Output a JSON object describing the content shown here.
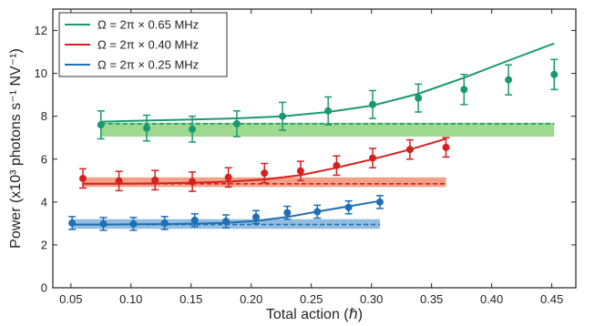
{
  "chart_data": {
    "type": "line",
    "xlabel": "Total action (ℏ)",
    "ylabel": "Power (x10³ photons s⁻¹ NV⁻¹)",
    "xlim": [
      0.035,
      0.47
    ],
    "ylim": [
      0,
      13
    ],
    "xticks": [
      0.05,
      0.1,
      0.15,
      0.2,
      0.25,
      0.3,
      0.35,
      0.4,
      0.45
    ],
    "yticks": [
      0,
      2,
      4,
      6,
      8,
      10,
      12
    ],
    "xtick_labels": [
      "0.05",
      "0.10",
      "0.15",
      "0.20",
      "0.25",
      "0.30",
      "0.35",
      "0.40",
      "0.45"
    ],
    "ytick_labels": [
      "0",
      "2",
      "4",
      "6",
      "8",
      "10",
      "12"
    ],
    "grid": false,
    "legend_position": "top-left",
    "series": [
      {
        "name": "Ω = 2π × 0.65 MHz",
        "color": "#1a9970",
        "band_color": "#7dcc6a",
        "points": {
          "x": [
            0.075,
            0.113,
            0.151,
            0.188,
            0.226,
            0.264,
            0.301,
            0.339,
            0.377,
            0.414,
            0.452
          ],
          "y": [
            7.6,
            7.45,
            7.4,
            7.65,
            8.0,
            8.25,
            8.55,
            8.85,
            9.25,
            9.7,
            9.95
          ],
          "err": [
            0.65,
            0.6,
            0.6,
            0.6,
            0.65,
            0.65,
            0.65,
            0.65,
            0.7,
            0.7,
            0.7
          ]
        },
        "fit": {
          "x": [
            0.075,
            0.113,
            0.151,
            0.188,
            0.226,
            0.264,
            0.301,
            0.339,
            0.377,
            0.414,
            0.452
          ],
          "y": [
            7.75,
            7.8,
            7.85,
            7.9,
            8.0,
            8.2,
            8.5,
            9.05,
            9.8,
            10.6,
            11.4
          ]
        },
        "baseline": {
          "x": [
            0.075,
            0.452
          ],
          "y": 7.65,
          "band": [
            7.05,
            7.7
          ]
        }
      },
      {
        "name": "Ω = 2π × 0.40 MHz",
        "color": "#d62020",
        "band_color": "#f08060",
        "points": {
          "x": [
            0.06,
            0.09,
            0.12,
            0.151,
            0.181,
            0.211,
            0.241,
            0.271,
            0.301,
            0.332,
            0.362
          ],
          "y": [
            5.1,
            4.98,
            5.02,
            4.95,
            5.15,
            5.35,
            5.45,
            5.7,
            6.05,
            6.45,
            6.55
          ],
          "err": [
            0.45,
            0.45,
            0.45,
            0.45,
            0.45,
            0.45,
            0.45,
            0.45,
            0.45,
            0.45,
            0.45
          ]
        },
        "fit": {
          "x": [
            0.06,
            0.09,
            0.12,
            0.151,
            0.181,
            0.211,
            0.241,
            0.271,
            0.301,
            0.332,
            0.362
          ],
          "y": [
            4.85,
            4.85,
            4.87,
            4.9,
            4.95,
            5.05,
            5.25,
            5.6,
            6.0,
            6.45,
            6.95
          ]
        },
        "baseline": {
          "x": [
            0.06,
            0.362
          ],
          "y": 4.85,
          "band": [
            4.7,
            5.15
          ]
        }
      },
      {
        "name": "Ω = 2π × 0.25 MHz",
        "color": "#1f6fb2",
        "band_color": "#6da7d6",
        "points": {
          "x": [
            0.051,
            0.077,
            0.102,
            0.128,
            0.153,
            0.179,
            0.204,
            0.23,
            0.255,
            0.281,
            0.307
          ],
          "y": [
            3.02,
            2.98,
            2.98,
            3.02,
            3.15,
            3.1,
            3.3,
            3.5,
            3.55,
            3.75,
            4.0
          ],
          "err": [
            0.3,
            0.3,
            0.3,
            0.3,
            0.3,
            0.3,
            0.3,
            0.3,
            0.3,
            0.3,
            0.3
          ]
        },
        "fit": {
          "x": [
            0.051,
            0.077,
            0.102,
            0.128,
            0.153,
            0.179,
            0.204,
            0.23,
            0.255,
            0.281,
            0.307
          ],
          "y": [
            2.95,
            2.95,
            2.96,
            2.97,
            2.99,
            3.03,
            3.12,
            3.3,
            3.55,
            3.8,
            4.05
          ]
        },
        "baseline": {
          "x": [
            0.051,
            0.307
          ],
          "y": 2.95,
          "band": [
            2.75,
            3.2
          ]
        }
      }
    ]
  }
}
